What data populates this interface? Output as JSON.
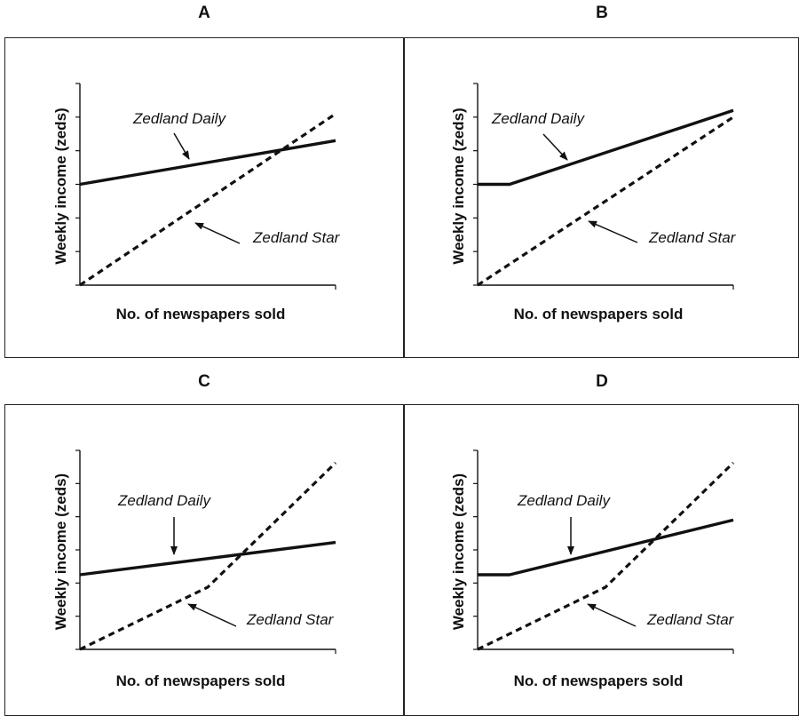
{
  "chart_data": [
    {
      "panel": "A",
      "type": "line",
      "xlabel": "No. of newspapers sold",
      "ylabel": "Weekly income (zeds)",
      "xlim": [
        0,
        1
      ],
      "ylim": [
        0,
        6
      ],
      "grid": false,
      "annotations": [
        "Zedland Daily",
        "Zedland Star"
      ],
      "series": [
        {
          "name": "Zedland Daily",
          "style": "solid",
          "x": [
            0,
            1
          ],
          "y": [
            3.0,
            4.3
          ]
        },
        {
          "name": "Zedland Star",
          "style": "dashed",
          "x": [
            0,
            1
          ],
          "y": [
            0,
            5.1
          ]
        }
      ]
    },
    {
      "panel": "B",
      "type": "line",
      "xlabel": "No. of newspapers sold",
      "ylabel": "Weekly income (zeds)",
      "xlim": [
        0,
        1
      ],
      "ylim": [
        0,
        6
      ],
      "grid": false,
      "annotations": [
        "Zedland Daily",
        "Zedland Star"
      ],
      "series": [
        {
          "name": "Zedland Daily",
          "style": "solid",
          "x": [
            0,
            0.125,
            1
          ],
          "y": [
            3.0,
            3.0,
            5.2
          ]
        },
        {
          "name": "Zedland Star",
          "style": "dashed",
          "x": [
            0,
            1
          ],
          "y": [
            0,
            5.0
          ]
        }
      ]
    },
    {
      "panel": "C",
      "type": "line",
      "xlabel": "No. of newspapers sold",
      "ylabel": "Weekly income (zeds)",
      "xlim": [
        0,
        1
      ],
      "ylim": [
        0,
        8
      ],
      "grid": false,
      "annotations": [
        "Zedland Daily",
        "Zedland Star"
      ],
      "series": [
        {
          "name": "Zedland Daily",
          "style": "solid",
          "x": [
            0,
            1
          ],
          "y": [
            3.0,
            4.3
          ]
        },
        {
          "name": "Zedland Star",
          "style": "dashed",
          "x": [
            0,
            0.5,
            1
          ],
          "y": [
            0,
            2.5,
            7.5
          ]
        }
      ]
    },
    {
      "panel": "D",
      "type": "line",
      "xlabel": "No. of newspapers sold",
      "ylabel": "Weekly income (zeds)",
      "xlim": [
        0,
        1
      ],
      "ylim": [
        0,
        8
      ],
      "grid": false,
      "annotations": [
        "Zedland Daily",
        "Zedland Star"
      ],
      "series": [
        {
          "name": "Zedland Daily",
          "style": "solid",
          "x": [
            0,
            0.125,
            1
          ],
          "y": [
            3.0,
            3.0,
            5.2
          ]
        },
        {
          "name": "Zedland Star",
          "style": "dashed",
          "x": [
            0,
            0.5,
            1
          ],
          "y": [
            0,
            2.5,
            7.5
          ]
        }
      ]
    }
  ]
}
